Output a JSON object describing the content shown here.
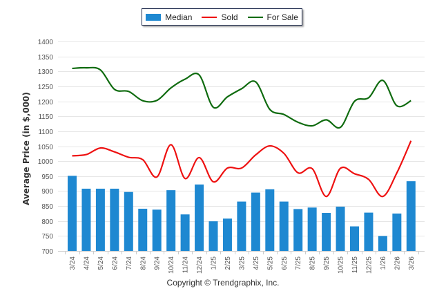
{
  "chart_data": {
    "type": "bar",
    "title": "",
    "xlabel": "",
    "ylabel": "Average Price (in $,000)",
    "ylim": [
      700,
      1400
    ],
    "yticks": [
      700,
      750,
      800,
      850,
      900,
      950,
      1000,
      1050,
      1100,
      1150,
      1200,
      1250,
      1300,
      1350,
      1400
    ],
    "grid": true,
    "legend_position": "top-center",
    "categories": [
      "3/24",
      "4/24",
      "5/24",
      "6/24",
      "7/24",
      "8/24",
      "9/24",
      "10/24",
      "11/24",
      "12/24",
      "1/25",
      "2/25",
      "3/25",
      "4/25",
      "5/25",
      "6/25",
      "7/25",
      "8/25",
      "9/25",
      "10/25",
      "11/25",
      "12/25",
      "1/26",
      "2/26",
      "3/26"
    ],
    "series": [
      {
        "name": "Median",
        "type": "bar",
        "color": "#1e88d1",
        "values": [
          951,
          908,
          908,
          908,
          897,
          841,
          838,
          903,
          822,
          922,
          799,
          808,
          865,
          895,
          906,
          865,
          840,
          845,
          827,
          848,
          782,
          828,
          750,
          825,
          933
        ]
      },
      {
        "name": "Sold",
        "type": "line",
        "color": "#ee1111",
        "values": [
          1018,
          1022,
          1044,
          1031,
          1013,
          1005,
          947,
          1055,
          942,
          1012,
          931,
          977,
          977,
          1021,
          1051,
          1026,
          961,
          975,
          882,
          976,
          958,
          939,
          882,
          961,
          1068
        ]
      },
      {
        "name": "For Sale",
        "type": "line",
        "color": "#0f6b0f",
        "values": [
          1310,
          1312,
          1305,
          1240,
          1233,
          1202,
          1203,
          1245,
          1274,
          1288,
          1180,
          1215,
          1242,
          1265,
          1173,
          1156,
          1130,
          1118,
          1138,
          1113,
          1200,
          1212,
          1270,
          1185,
          1202
        ]
      }
    ]
  },
  "legend": {
    "items": [
      {
        "label": "Median",
        "color": "#1e88d1"
      },
      {
        "label": "Sold",
        "color": "#ee1111"
      },
      {
        "label": "For Sale",
        "color": "#0f6b0f"
      }
    ]
  },
  "footer": {
    "copyright": "Copyright © Trendgraphix, Inc."
  }
}
